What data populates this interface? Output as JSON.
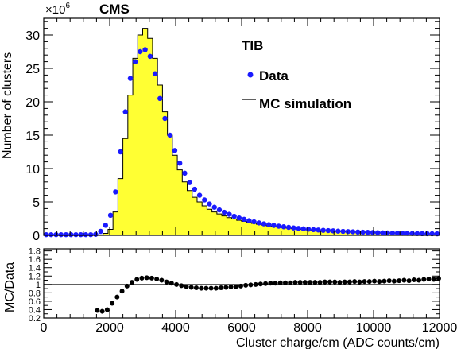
{
  "chart_data": [
    {
      "type": "histogram",
      "panel": "main",
      "experiment_label": "CMS",
      "region_label": "TIB",
      "y_multiplier": "×10",
      "y_multiplier_exp": "6",
      "ylabel": "Number of clusters",
      "xlim": [
        0,
        12000
      ],
      "ylim": [
        0,
        32.5
      ],
      "x_ticks": [
        0,
        2000,
        4000,
        6000,
        8000,
        10000,
        12000
      ],
      "y_ticks": [
        0,
        5,
        10,
        15,
        20,
        25,
        30
      ],
      "legend": {
        "position": "top-right",
        "data_label": "Data",
        "mc_label": "MC simulation"
      },
      "colors": {
        "mc_fill": "#ffff33",
        "data_marker": "#1a1aff",
        "mc_line": "#000000"
      },
      "bin_width": 150,
      "series": [
        {
          "name": "MC simulation",
          "style": "filled-step",
          "x": [
            0,
            150,
            300,
            450,
            600,
            750,
            900,
            1050,
            1200,
            1350,
            1500,
            1650,
            1800,
            1950,
            2100,
            2250,
            2400,
            2550,
            2700,
            2850,
            3000,
            3150,
            3300,
            3450,
            3600,
            3750,
            3900,
            4050,
            4200,
            4350,
            4500,
            4650,
            4800,
            4950,
            5100,
            5250,
            5400,
            5550,
            5700,
            5850,
            6000,
            6150,
            6300,
            6450,
            6600,
            6750,
            6900,
            7050,
            7200,
            7350,
            7500,
            7650,
            7800,
            7950,
            8100,
            8250,
            8400,
            8550,
            8700,
            8850,
            9000,
            9150,
            9300,
            9450,
            9600,
            9750,
            9900,
            10050,
            10200,
            10350,
            10500,
            10650,
            10800,
            10950,
            11100,
            11250,
            11400,
            11550,
            11700,
            11850
          ],
          "values": [
            0.05,
            0.05,
            0.05,
            0.05,
            0.05,
            0.05,
            0.05,
            0.05,
            0.05,
            0.05,
            0.05,
            0.08,
            0.3,
            0.9,
            3.5,
            8.5,
            14.5,
            21.0,
            26.5,
            30.0,
            31.0,
            29.5,
            26.5,
            22.5,
            18.5,
            15.0,
            12.0,
            9.8,
            8.0,
            6.7,
            5.7,
            5.0,
            4.4,
            3.9,
            3.5,
            3.2,
            2.9,
            2.65,
            2.45,
            2.25,
            2.08,
            1.92,
            1.78,
            1.65,
            1.53,
            1.42,
            1.32,
            1.23,
            1.15,
            1.07,
            1.0,
            0.94,
            0.88,
            0.83,
            0.78,
            0.73,
            0.69,
            0.65,
            0.61,
            0.58,
            0.55,
            0.52,
            0.49,
            0.47,
            0.44,
            0.42,
            0.4,
            0.38,
            0.36,
            0.35,
            0.33,
            0.32,
            0.3,
            0.29,
            0.28,
            0.27,
            0.26,
            0.25,
            0.24,
            0.23
          ]
        },
        {
          "name": "Data",
          "style": "markers",
          "x": [
            75,
            225,
            375,
            525,
            675,
            825,
            975,
            1125,
            1275,
            1425,
            1575,
            1725,
            1875,
            2025,
            2175,
            2325,
            2475,
            2625,
            2775,
            2925,
            3075,
            3225,
            3375,
            3525,
            3675,
            3825,
            3975,
            4125,
            4275,
            4425,
            4575,
            4725,
            4875,
            5025,
            5175,
            5325,
            5475,
            5625,
            5775,
            5925,
            6075,
            6225,
            6375,
            6525,
            6675,
            6825,
            6975,
            7125,
            7275,
            7425,
            7575,
            7725,
            7875,
            8025,
            8175,
            8325,
            8475,
            8625,
            8775,
            8925,
            9075,
            9225,
            9375,
            9525,
            9675,
            9825,
            9975,
            10125,
            10275,
            10425,
            10575,
            10725,
            10875,
            11025,
            11175,
            11325,
            11475,
            11625,
            11775,
            11925
          ],
          "values": [
            0.1,
            0.1,
            0.1,
            0.1,
            0.1,
            0.1,
            0.1,
            0.1,
            0.1,
            0.1,
            0.15,
            0.6,
            1.5,
            3.0,
            6.5,
            12.5,
            18.5,
            23.5,
            26.0,
            27.5,
            27.8,
            26.8,
            24.2,
            20.5,
            17.5,
            15.0,
            12.7,
            10.8,
            9.3,
            7.9,
            6.9,
            6.0,
            5.3,
            4.7,
            4.2,
            3.8,
            3.45,
            3.15,
            2.85,
            2.6,
            2.4,
            2.2,
            2.02,
            1.86,
            1.72,
            1.6,
            1.48,
            1.37,
            1.28,
            1.19,
            1.11,
            1.04,
            0.97,
            0.91,
            0.85,
            0.8,
            0.75,
            0.71,
            0.67,
            0.63,
            0.59,
            0.56,
            0.53,
            0.5,
            0.47,
            0.45,
            0.42,
            0.4,
            0.38,
            0.36,
            0.34,
            0.33,
            0.31,
            0.3,
            0.28,
            0.27,
            0.26,
            0.25,
            0.24,
            0.23
          ]
        }
      ]
    },
    {
      "type": "scatter",
      "panel": "ratio",
      "ylabel": "MC/Data",
      "xlabel": "Cluster charge/cm (ADC counts/cm)",
      "xlim": [
        0,
        12000
      ],
      "ylim": [
        0.2,
        1.85
      ],
      "x_ticks": [
        0,
        2000,
        4000,
        6000,
        8000,
        10000,
        12000
      ],
      "y_ticks": [
        0.2,
        0.4,
        0.6,
        0.8,
        1.0,
        1.2,
        1.4,
        1.6,
        1.8
      ],
      "y_tick_labels": [
        "0.2",
        "0.4",
        "0.6",
        "0.8",
        "1",
        "1.2",
        "1.4",
        "1.6",
        "1.8"
      ],
      "reference_line": 1.0,
      "series": [
        {
          "name": "MC/Data",
          "x": [
            1625,
            1775,
            1925,
            2075,
            2225,
            2375,
            2525,
            2675,
            2825,
            2975,
            3125,
            3275,
            3425,
            3575,
            3725,
            3875,
            4025,
            4175,
            4325,
            4475,
            4625,
            4775,
            4925,
            5075,
            5225,
            5375,
            5525,
            5675,
            5825,
            5975,
            6125,
            6275,
            6425,
            6575,
            6725,
            6875,
            7025,
            7175,
            7325,
            7475,
            7625,
            7775,
            7925,
            8075,
            8225,
            8375,
            8525,
            8675,
            8825,
            8975,
            9125,
            9275,
            9425,
            9575,
            9725,
            9875,
            10025,
            10175,
            10325,
            10475,
            10625,
            10775,
            10925,
            11075,
            11225,
            11375,
            11525,
            11675,
            11825,
            11975
          ],
          "values": [
            0.38,
            0.36,
            0.4,
            0.55,
            0.7,
            0.84,
            0.96,
            1.05,
            1.12,
            1.15,
            1.16,
            1.15,
            1.13,
            1.1,
            1.06,
            1.03,
            1.0,
            0.97,
            0.95,
            0.93,
            0.92,
            0.91,
            0.91,
            0.91,
            0.91,
            0.92,
            0.93,
            0.94,
            0.95,
            0.96,
            0.98,
            0.99,
            1.0,
            1.01,
            1.02,
            1.03,
            1.03,
            1.04,
            1.04,
            1.04,
            1.05,
            1.05,
            1.05,
            1.05,
            1.05,
            1.05,
            1.06,
            1.06,
            1.06,
            1.05,
            1.06,
            1.06,
            1.07,
            1.06,
            1.07,
            1.07,
            1.08,
            1.07,
            1.08,
            1.09,
            1.08,
            1.09,
            1.1,
            1.09,
            1.11,
            1.1,
            1.12,
            1.13,
            1.12,
            1.14
          ]
        }
      ]
    }
  ]
}
